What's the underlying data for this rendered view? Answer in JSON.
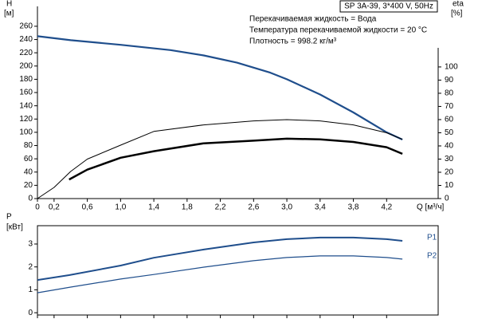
{
  "chart_data": [
    {
      "type": "line",
      "title": "SP 3A-39, 3*400 V, 50Hz",
      "annotations": [
        "Перекачиваемая жидкость = Вода",
        "Температура перекачиваемой жидкости = 20 °C",
        "Плотность = 998.2 кг/м³"
      ],
      "ylabel": [
        "H",
        "[м]"
      ],
      "y2label": [
        "eta",
        "[%]"
      ],
      "xlabel": "Q [м³/ч]",
      "xlim": [
        0,
        4.82
      ],
      "xticks": [
        0,
        {
          "value": 0.2,
          "label": "0,2"
        },
        {
          "value": 0.6,
          "label": "0,6"
        },
        {
          "value": 1.0,
          "label": "1,0"
        },
        {
          "value": 1.4,
          "label": "1,4"
        },
        {
          "value": 1.8,
          "label": "1,8"
        },
        {
          "value": 2.2,
          "label": "2,2"
        },
        {
          "value": 2.6,
          "label": "2,6"
        },
        {
          "value": 3.0,
          "label": "3,0"
        },
        {
          "value": 3.4,
          "label": "3,4"
        },
        {
          "value": 3.8,
          "label": "3,8"
        },
        {
          "value": 4.2,
          "label": "4,2"
        }
      ],
      "ylim": [
        0,
        290
      ],
      "yticks": [
        0,
        20,
        40,
        60,
        80,
        100,
        120,
        140,
        160,
        180,
        200,
        220,
        240,
        260
      ],
      "y2lim": [
        0,
        146
      ],
      "y2ticks": [
        0,
        10,
        20,
        30,
        40,
        50,
        60,
        70,
        80,
        90,
        100
      ],
      "series": [
        {
          "color": "#1f4e8c",
          "width": 2.2,
          "x": [
            0,
            0.4,
            1.0,
            1.6,
            2.0,
            2.4,
            2.8,
            3.0,
            3.4,
            3.8,
            4.2,
            4.39
          ],
          "values": [
            245,
            239,
            232,
            224,
            216,
            205,
            190,
            180,
            157,
            130,
            100,
            89
          ]
        },
        {
          "color": "#000000",
          "width": 1,
          "axis": "y2",
          "x": [
            0,
            0.2,
            0.4,
            0.6,
            1.0,
            1.4,
            2.0,
            2.6,
            3.0,
            3.4,
            3.8,
            4.2,
            4.39
          ],
          "values": [
            0,
            8.5,
            20.6,
            30,
            40.6,
            51,
            56,
            59,
            60,
            59,
            56,
            50,
            45
          ]
        },
        {
          "color": "#000000",
          "width": 2.5,
          "axis": "y2",
          "x": [
            0.38,
            0.6,
            1.0,
            1.4,
            2.0,
            2.6,
            3.0,
            3.4,
            3.8,
            4.2,
            4.39
          ],
          "values": [
            14.5,
            22,
            31,
            36,
            42,
            44,
            45.5,
            45,
            43,
            39,
            34
          ]
        }
      ]
    },
    {
      "type": "line",
      "ylabel": [
        "P",
        "[кВт]"
      ],
      "xlim": [
        0,
        4.82
      ],
      "ylim": [
        -0.1,
        3.8
      ],
      "yticks": [
        0,
        1,
        2,
        3
      ],
      "series": [
        {
          "name": "P1",
          "color": "#1f4e8c",
          "width": 2,
          "x": [
            0,
            0.38,
            1.0,
            1.4,
            2.0,
            2.6,
            3.0,
            3.4,
            3.8,
            4.2,
            4.39
          ],
          "values": [
            1.43,
            1.64,
            2.06,
            2.4,
            2.76,
            3.07,
            3.21,
            3.28,
            3.28,
            3.21,
            3.14
          ]
        },
        {
          "name": "P2",
          "color": "#1f4e8c",
          "width": 1.2,
          "x": [
            0,
            0.4,
            1.0,
            1.4,
            2.0,
            2.6,
            3.0,
            3.4,
            3.8,
            4.2,
            4.39
          ],
          "values": [
            0.87,
            1.12,
            1.47,
            1.67,
            1.99,
            2.27,
            2.41,
            2.48,
            2.48,
            2.41,
            2.34
          ]
        }
      ]
    }
  ]
}
